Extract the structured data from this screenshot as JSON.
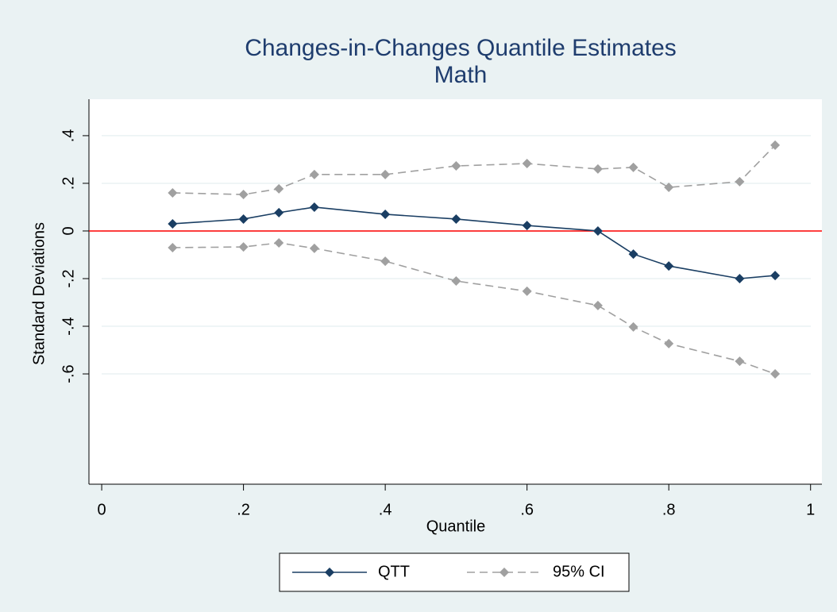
{
  "chart_data": {
    "type": "line",
    "title": "Changes-in-Changes Quantile Estimates",
    "subtitle": "Math",
    "x_label": "Quantile",
    "y_label": "Standard Deviations",
    "x": [
      0.1,
      0.2,
      0.25,
      0.3,
      0.4,
      0.5,
      0.6,
      0.7,
      0.75,
      0.8,
      0.9,
      0.95
    ],
    "series": [
      {
        "name": "QTT",
        "color": "#1a3e63",
        "dashed": false,
        "values": [
          0.03,
          0.05,
          0.077,
          0.1,
          0.07,
          0.05,
          0.023,
          0.0,
          -0.097,
          -0.147,
          -0.2,
          -0.187
        ]
      },
      {
        "name": "95% CI",
        "color": "#a0a0a0",
        "dashed": true,
        "upper": [
          0.16,
          0.153,
          0.177,
          0.237,
          0.237,
          0.273,
          0.283,
          0.26,
          0.267,
          0.183,
          0.207,
          0.36
        ],
        "lower": [
          -0.07,
          -0.067,
          -0.05,
          -0.073,
          -0.127,
          -0.21,
          -0.253,
          -0.313,
          -0.403,
          -0.473,
          -0.547,
          -0.6
        ]
      }
    ],
    "reference_line": {
      "value": 0,
      "color": "#ff0000"
    },
    "xlim": [
      -0.018,
      1.016
    ],
    "ylim": [
      -1.063,
      0.553
    ],
    "xticks": [
      0,
      {
        "value": 0.2,
        "label": ".2"
      },
      {
        "value": 0.4,
        "label": ".4"
      },
      {
        "value": 0.6,
        "label": ".6"
      },
      {
        "value": 0.8,
        "label": ".8"
      },
      1
    ],
    "yticks": [
      {
        "value": -0.6,
        "label": "-.6"
      },
      {
        "value": -0.4,
        "label": "-.4"
      },
      {
        "value": -0.2,
        "label": "-.2"
      },
      0,
      {
        "value": 0.2,
        "label": ".2"
      },
      {
        "value": 0.4,
        "label": ".4"
      }
    ],
    "grid": true
  }
}
